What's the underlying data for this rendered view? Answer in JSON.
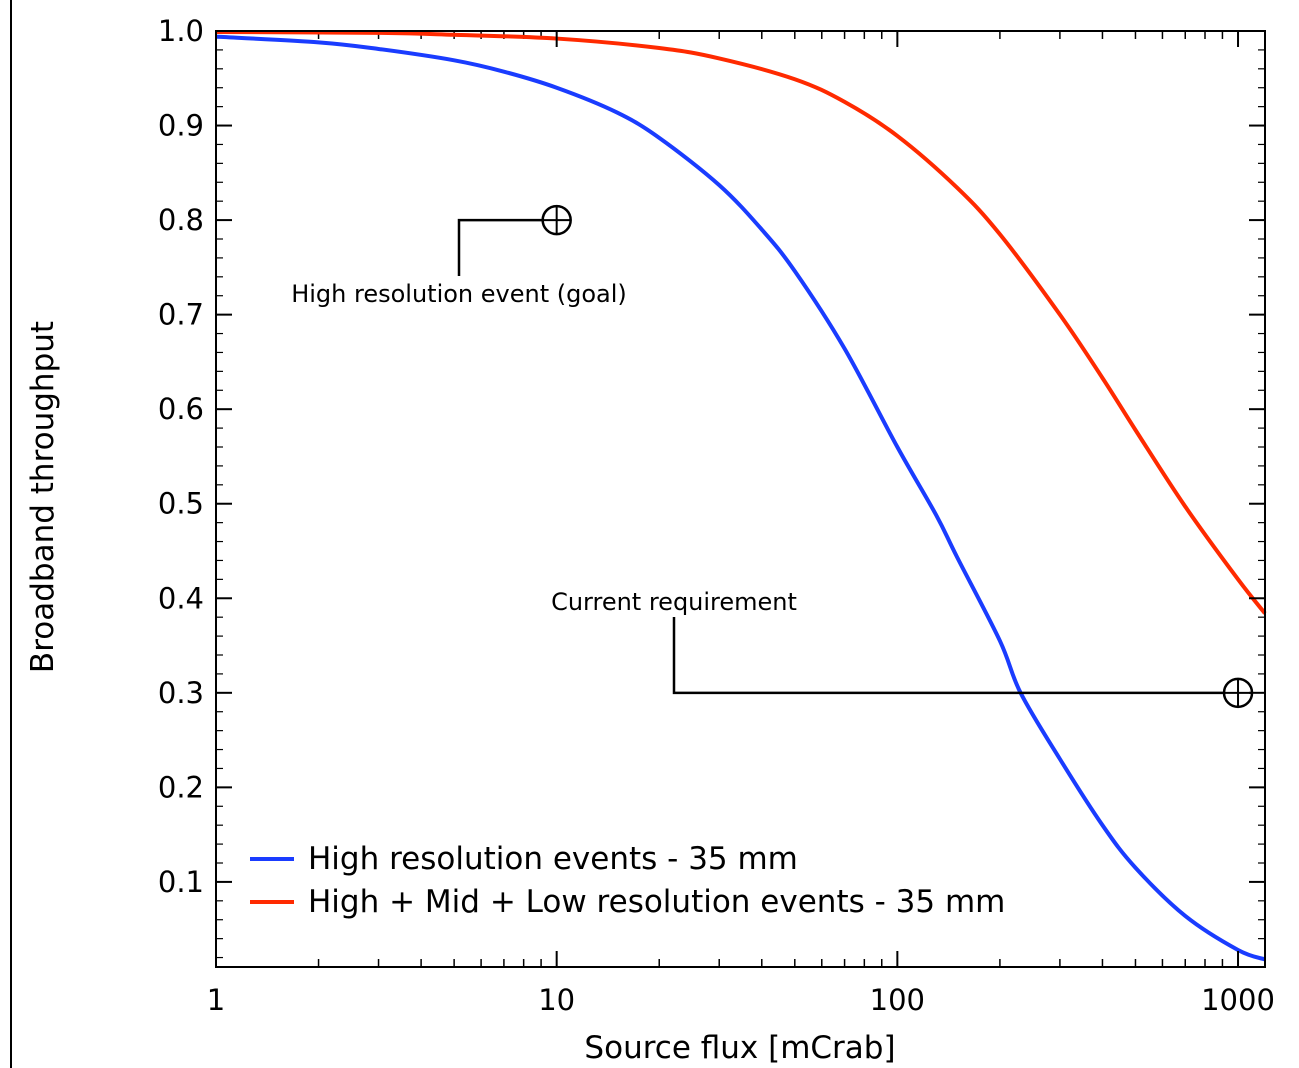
{
  "chart_data": {
    "type": "line",
    "xlabel": "Source flux [mCrab]",
    "ylabel": "Broadband throughput",
    "x_scale": "log",
    "xlim": [
      1,
      1200
    ],
    "ylim": [
      0.01,
      1.0
    ],
    "x_ticks": [
      {
        "value": 1,
        "label": "1"
      },
      {
        "value": 10,
        "label": "10"
      },
      {
        "value": 100,
        "label": "100"
      },
      {
        "value": 1000,
        "label": "1000"
      }
    ],
    "y_ticks": [
      {
        "value": 0.1,
        "label": "0.1"
      },
      {
        "value": 0.2,
        "label": "0.2"
      },
      {
        "value": 0.3,
        "label": "0.3"
      },
      {
        "value": 0.4,
        "label": "0.4"
      },
      {
        "value": 0.5,
        "label": "0.5"
      },
      {
        "value": 0.6,
        "label": "0.6"
      },
      {
        "value": 0.7,
        "label": "0.7"
      },
      {
        "value": 0.8,
        "label": "0.8"
      },
      {
        "value": 0.9,
        "label": "0.9"
      },
      {
        "value": 1.0,
        "label": "1.0"
      }
    ],
    "grid": false,
    "legend_position": "bottom-left",
    "series": [
      {
        "name": "High resolution events - 35 mm",
        "color": "#1a3cff",
        "x": [
          1,
          2,
          3,
          5,
          7,
          10,
          15,
          20,
          30,
          40,
          50,
          70,
          100,
          130,
          150,
          200,
          230,
          300,
          400,
          500,
          700,
          1000,
          1200
        ],
        "y": [
          0.994,
          0.988,
          0.981,
          0.969,
          0.957,
          0.94,
          0.914,
          0.887,
          0.837,
          0.79,
          0.746,
          0.664,
          0.56,
          0.488,
          0.443,
          0.355,
          0.3,
          0.23,
          0.16,
          0.115,
          0.064,
          0.028,
          0.018
        ]
      },
      {
        "name": "High + Mid + Low resolution events - 35 mm",
        "color": "#ff2a00",
        "x": [
          1,
          3,
          5,
          10,
          20,
          30,
          50,
          70,
          100,
          150,
          200,
          300,
          400,
          500,
          700,
          1000,
          1200
        ],
        "y": [
          0.999,
          0.998,
          0.996,
          0.992,
          0.982,
          0.971,
          0.949,
          0.925,
          0.889,
          0.834,
          0.785,
          0.7,
          0.633,
          0.578,
          0.497,
          0.42,
          0.384
        ]
      }
    ],
    "annotations": [
      {
        "text": "High resolution event (goal)",
        "x": 10,
        "y": 0.8
      },
      {
        "text": "Current requirement",
        "x": 1000,
        "y": 0.3
      }
    ]
  }
}
